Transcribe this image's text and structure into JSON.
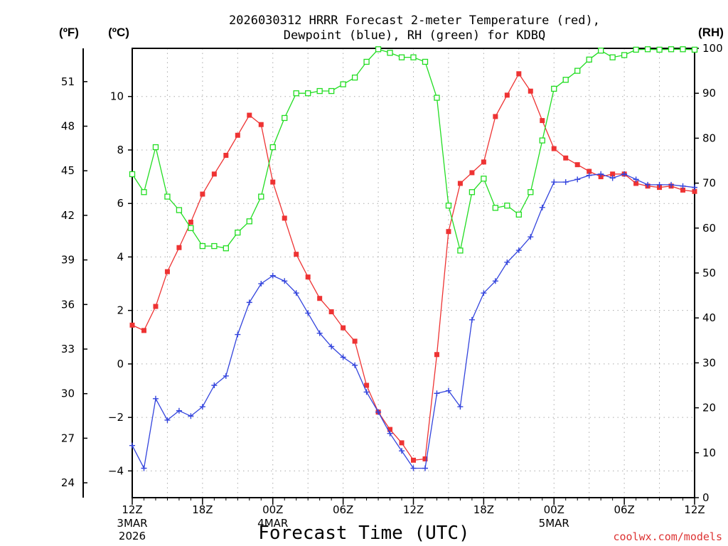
{
  "colors": {
    "temperature": "#ee3333",
    "dewpoint": "#3344dd",
    "rh": "#22dd22",
    "credit": "#dd3333"
  },
  "title_line1": "2026030312 HRRR Forecast 2-meter Temperature (red),",
  "title_line2": "Dewpoint (blue), RH (green) for KDBQ",
  "left_outer_unit": "(ºF)",
  "left_inner_unit": "(ºC)",
  "right_unit": "(RH)",
  "xlabel": "Forecast Time (UTC)",
  "credit": "coolwx.com/models",
  "chart_data": {
    "type": "line",
    "x_hours": [
      0,
      1,
      2,
      3,
      4,
      5,
      6,
      7,
      8,
      9,
      10,
      11,
      12,
      13,
      14,
      15,
      16,
      17,
      18,
      19,
      20,
      21,
      22,
      23,
      24,
      25,
      26,
      27,
      28,
      29,
      30,
      31,
      32,
      33,
      34,
      35,
      36,
      37,
      38,
      39,
      40,
      41,
      42,
      43,
      44,
      45,
      46,
      47,
      48
    ],
    "x_ticks": [
      {
        "hour": 0,
        "label": "12Z",
        "sub1": "3MAR",
        "sub2": "2026"
      },
      {
        "hour": 6,
        "label": "18Z"
      },
      {
        "hour": 12,
        "label": "00Z",
        "sub1": "4MAR"
      },
      {
        "hour": 18,
        "label": "06Z"
      },
      {
        "hour": 24,
        "label": "12Z"
      },
      {
        "hour": 30,
        "label": "18Z"
      },
      {
        "hour": 36,
        "label": "00Z",
        "sub1": "5MAR"
      },
      {
        "hour": 42,
        "label": "06Z"
      },
      {
        "hour": 48,
        "label": "12Z"
      }
    ],
    "y_celsius_range": [
      -5,
      11.8
    ],
    "y_celsius_ticks": [
      -4,
      -2,
      0,
      2,
      4,
      6,
      8,
      10
    ],
    "y_fahrenheit_ticks": [
      24,
      27,
      30,
      33,
      36,
      39,
      42,
      45,
      48,
      51
    ],
    "y_rh_range": [
      0,
      100
    ],
    "y_rh_ticks": [
      0,
      10,
      20,
      30,
      40,
      50,
      60,
      70,
      80,
      90,
      100
    ],
    "grid": true,
    "series": [
      {
        "axis": "celsius",
        "marker": "filled-square",
        "values": [
          1.45,
          1.25,
          2.15,
          3.45,
          4.35,
          5.3,
          6.35,
          7.1,
          7.8,
          8.55,
          9.3,
          8.95,
          6.8,
          5.45,
          4.1,
          3.25,
          2.45,
          1.95,
          1.35,
          0.85,
          -0.8,
          -1.8,
          -2.45,
          -2.95,
          -3.6,
          -3.55,
          0.35,
          4.95,
          6.75,
          7.15,
          7.55,
          9.25,
          10.05,
          10.85,
          10.2,
          9.1,
          8.05,
          7.7,
          7.45,
          7.2,
          7.0,
          7.1,
          7.1,
          6.75,
          6.65,
          6.6,
          6.65,
          6.5,
          6.45
        ]
      },
      {
        "axis": "celsius",
        "marker": "plus",
        "values": [
          -3.05,
          -3.9,
          -1.3,
          -2.1,
          -1.75,
          -1.95,
          -1.6,
          -0.8,
          -0.45,
          1.1,
          2.3,
          3.0,
          3.3,
          3.1,
          2.65,
          1.9,
          1.15,
          0.65,
          0.25,
          -0.05,
          -1.05,
          -1.8,
          -2.6,
          -3.25,
          -3.9,
          -3.9,
          -1.1,
          -1.0,
          -1.6,
          1.65,
          2.65,
          3.1,
          3.8,
          4.25,
          4.75,
          5.85,
          6.8,
          6.8,
          6.9,
          7.05,
          7.1,
          6.95,
          7.1,
          6.9,
          6.7,
          6.7,
          6.7,
          6.65,
          6.6
        ]
      },
      {
        "axis": "rh",
        "marker": "open-square",
        "values": [
          72,
          68,
          78,
          67,
          64,
          60,
          56,
          56,
          55.5,
          59,
          61.5,
          67,
          78,
          84.5,
          90,
          90,
          90.5,
          90.5,
          92,
          93.5,
          97,
          99.8,
          99,
          98,
          98,
          97,
          89,
          65,
          55,
          68,
          71,
          64.5,
          65,
          63,
          68,
          79.5,
          91,
          93,
          95,
          97.5,
          99.5,
          98,
          98.5,
          99.7,
          99.8,
          99.7,
          99.8,
          99.8,
          99.7
        ]
      }
    ]
  }
}
